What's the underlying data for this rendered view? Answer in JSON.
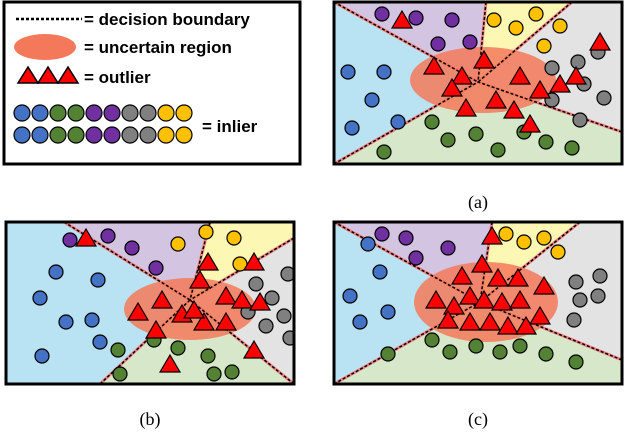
{
  "legend": {
    "decision_boundary_label": "= decision boundary",
    "uncertain_region_label": "= uncertain region",
    "outlier_label": "= outlier",
    "inlier_label": "= inlier"
  },
  "panels": [
    {
      "id": "a",
      "caption": "(a)"
    },
    {
      "id": "b",
      "caption": "(b)"
    },
    {
      "id": "c",
      "caption": "(c)"
    }
  ],
  "colors": {
    "blue_region": "#b9e2f2",
    "purple_region": "#d3c5e2",
    "yellow_region": "#fdf7b4",
    "gray_region": "#e3e3e3",
    "green_region": "#d6e8c9",
    "blue_point": "#4472c4",
    "purple_point": "#7030a0",
    "yellow_point": "#ffc000",
    "gray_point": "#808080",
    "green_point": "#548235",
    "outlier": "#ff0000",
    "uncertain": "#f4795b",
    "boundary": "#000000"
  },
  "icons": {
    "outlier_marker": "red-triangle-icon",
    "inlier_marker": "colored-circle-icon",
    "boundary_marker": "dashed-line-icon",
    "uncertain_marker": "red-ellipse-icon"
  }
}
